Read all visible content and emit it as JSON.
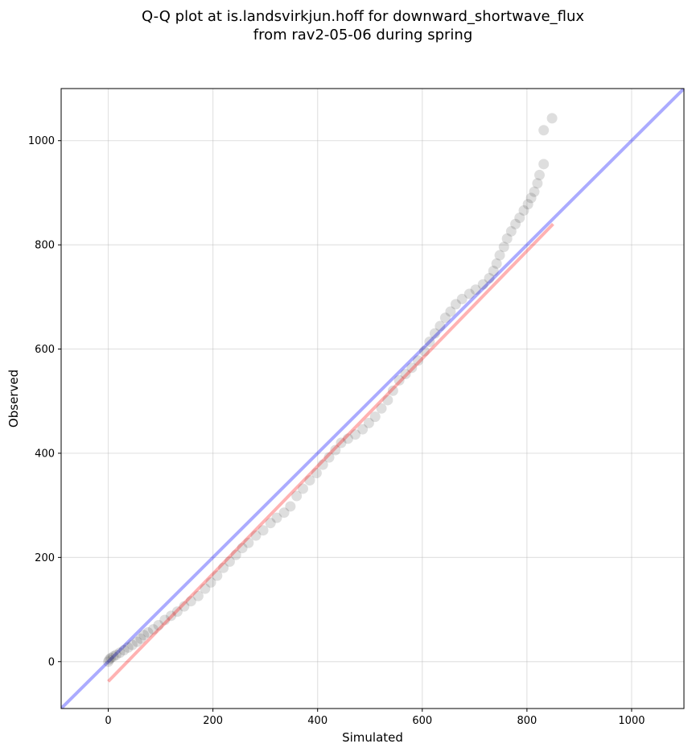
{
  "chart_data": {
    "type": "scatter",
    "title_lines": [
      "Q-Q plot at is.landsvirkjun.hoff for downward_shortwave_flux",
      "from rav2-05-06 during spring"
    ],
    "xlabel": "Simulated",
    "ylabel": "Observed",
    "xlim": [
      -90,
      1100
    ],
    "ylim": [
      -90,
      1100
    ],
    "xticks": [
      0,
      200,
      400,
      600,
      800,
      1000
    ],
    "yticks": [
      0,
      200,
      400,
      600,
      800,
      1000
    ],
    "grid": true,
    "reference_line": {
      "points": [
        [
          -90,
          -90
        ],
        [
          1100,
          1100
        ]
      ],
      "color": "#0000ff"
    },
    "fit_line": {
      "points": [
        [
          0,
          -38
        ],
        [
          850,
          840
        ]
      ],
      "color": "#ff0000"
    },
    "point_color": "#000000",
    "quantiles": [
      [
        0,
        0
      ],
      [
        2,
        4
      ],
      [
        5,
        7
      ],
      [
        10,
        10
      ],
      [
        15,
        13
      ],
      [
        22,
        17
      ],
      [
        30,
        22
      ],
      [
        38,
        27
      ],
      [
        46,
        32
      ],
      [
        55,
        38
      ],
      [
        62,
        44
      ],
      [
        68,
        51
      ],
      [
        76,
        56
      ],
      [
        86,
        62
      ],
      [
        96,
        70
      ],
      [
        108,
        80
      ],
      [
        120,
        88
      ],
      [
        132,
        96
      ],
      [
        145,
        106
      ],
      [
        158,
        116
      ],
      [
        172,
        126
      ],
      [
        185,
        140
      ],
      [
        196,
        152
      ],
      [
        208,
        165
      ],
      [
        220,
        180
      ],
      [
        232,
        192
      ],
      [
        244,
        205
      ],
      [
        256,
        218
      ],
      [
        268,
        228
      ],
      [
        282,
        242
      ],
      [
        296,
        252
      ],
      [
        310,
        266
      ],
      [
        322,
        276
      ],
      [
        336,
        286
      ],
      [
        348,
        298
      ],
      [
        360,
        318
      ],
      [
        372,
        332
      ],
      [
        385,
        348
      ],
      [
        398,
        362
      ],
      [
        410,
        378
      ],
      [
        422,
        392
      ],
      [
        434,
        406
      ],
      [
        445,
        420
      ],
      [
        458,
        428
      ],
      [
        472,
        436
      ],
      [
        486,
        446
      ],
      [
        498,
        458
      ],
      [
        510,
        470
      ],
      [
        522,
        486
      ],
      [
        534,
        502
      ],
      [
        544,
        520
      ],
      [
        556,
        540
      ],
      [
        568,
        552
      ],
      [
        580,
        564
      ],
      [
        592,
        578
      ],
      [
        604,
        596
      ],
      [
        614,
        614
      ],
      [
        624,
        630
      ],
      [
        634,
        644
      ],
      [
        644,
        660
      ],
      [
        654,
        672
      ],
      [
        664,
        686
      ],
      [
        676,
        696
      ],
      [
        690,
        706
      ],
      [
        702,
        714
      ],
      [
        716,
        724
      ],
      [
        728,
        736
      ],
      [
        736,
        750
      ],
      [
        742,
        764
      ],
      [
        748,
        780
      ],
      [
        756,
        796
      ],
      [
        762,
        812
      ],
      [
        770,
        826
      ],
      [
        778,
        840
      ],
      [
        786,
        852
      ],
      [
        794,
        866
      ],
      [
        802,
        878
      ],
      [
        808,
        890
      ],
      [
        814,
        902
      ],
      [
        820,
        918
      ],
      [
        824,
        934
      ],
      [
        832,
        955
      ],
      [
        832,
        1020
      ],
      [
        848,
        1043
      ]
    ]
  }
}
